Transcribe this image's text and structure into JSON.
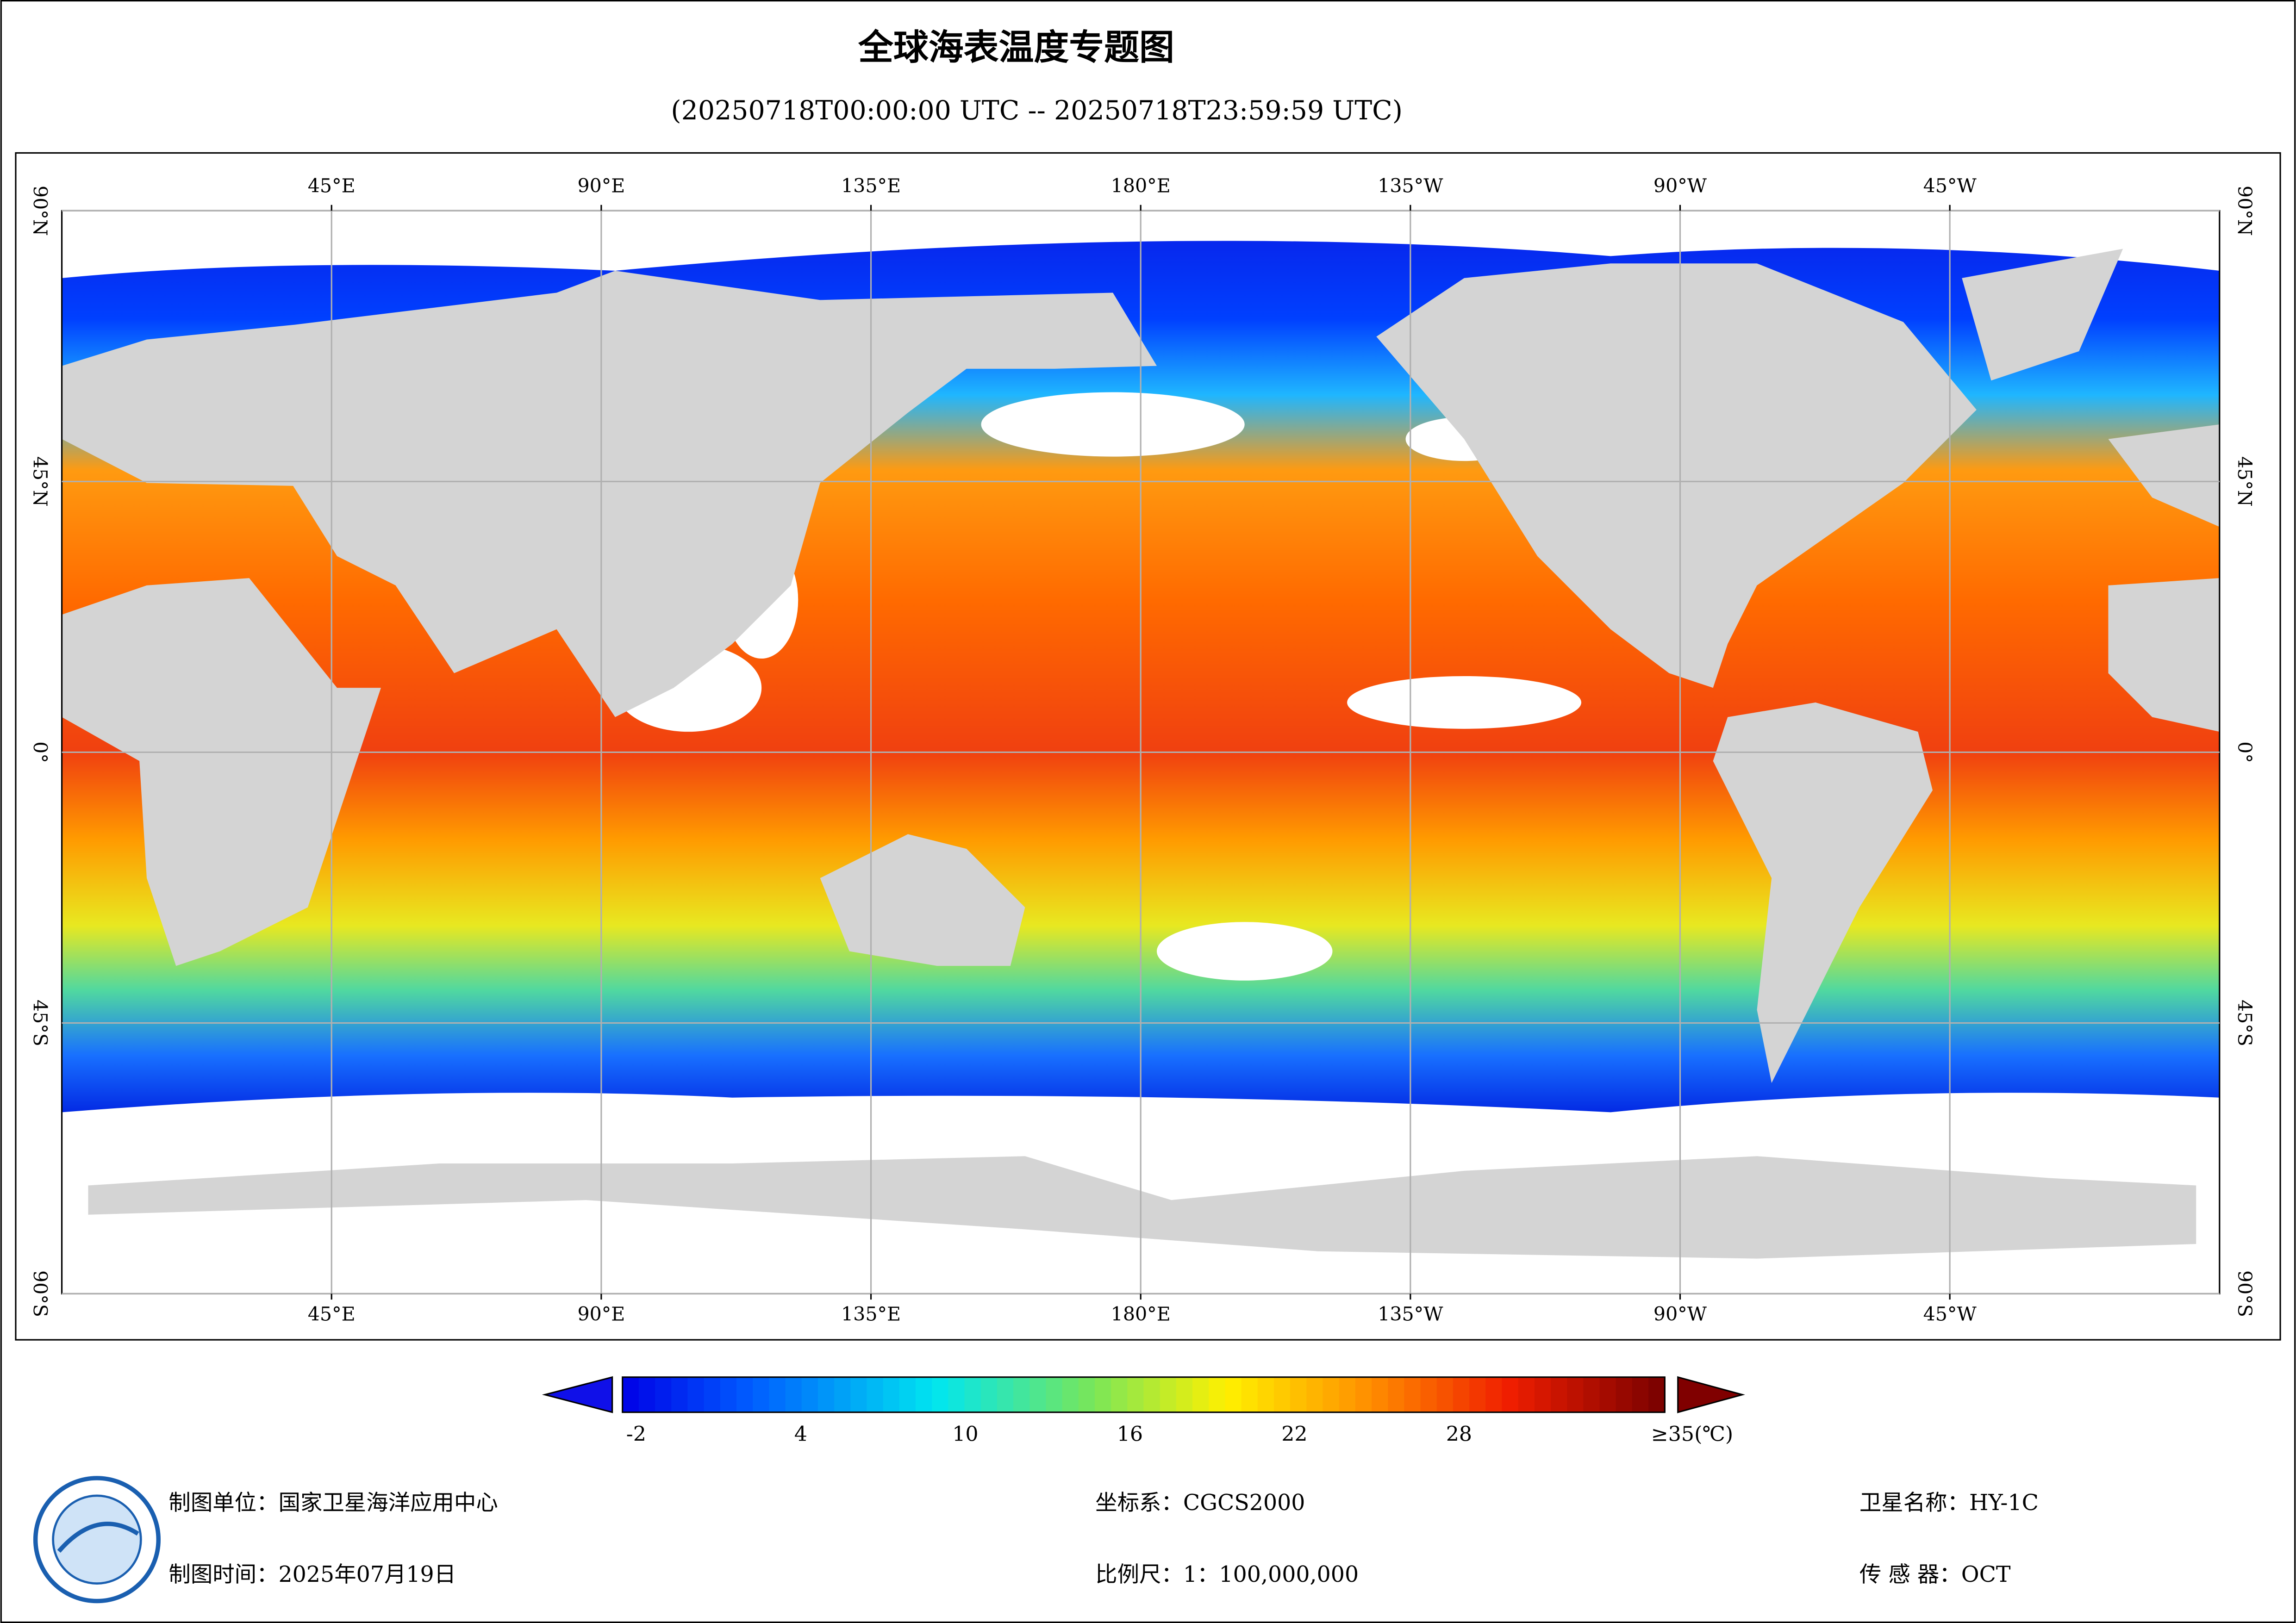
{
  "title": "全球海表温度专题图",
  "subtitle": "(20250718T00:00:00 UTC -- 20250718T23:59:59 UTC)",
  "map": {
    "lon_ticks": [
      {
        "value": 45,
        "label": "45°E"
      },
      {
        "value": 90,
        "label": "90°E"
      },
      {
        "value": 135,
        "label": "135°E"
      },
      {
        "value": 180,
        "label": "180°E"
      },
      {
        "value": -135,
        "label": "135°W"
      },
      {
        "value": -90,
        "label": "90°W"
      },
      {
        "value": -45,
        "label": "45°W"
      }
    ],
    "lat_ticks": [
      {
        "value": 90,
        "label": "90°N"
      },
      {
        "value": 45,
        "label": "45°N"
      },
      {
        "value": 0,
        "label": "0°"
      },
      {
        "value": -45,
        "label": "45°S"
      },
      {
        "value": -90,
        "label": "90°S"
      }
    ],
    "grid": true
  },
  "colorbar": {
    "lim": [
      -2.5,
      35.5
    ],
    "ticks": [
      -2,
      4,
      10,
      16,
      22,
      28,
      {
        "value": 35,
        "label": "≥35(℃)"
      }
    ]
  },
  "footer": [
    "制图单位：国家卫星海洋应用中心",
    "制图时间：2025年07月19日",
    "坐标系：CGCS2000",
    "比例尺：1：100,000,000",
    "卫星名称：HY-1C",
    "传 感 器：OCT"
  ]
}
